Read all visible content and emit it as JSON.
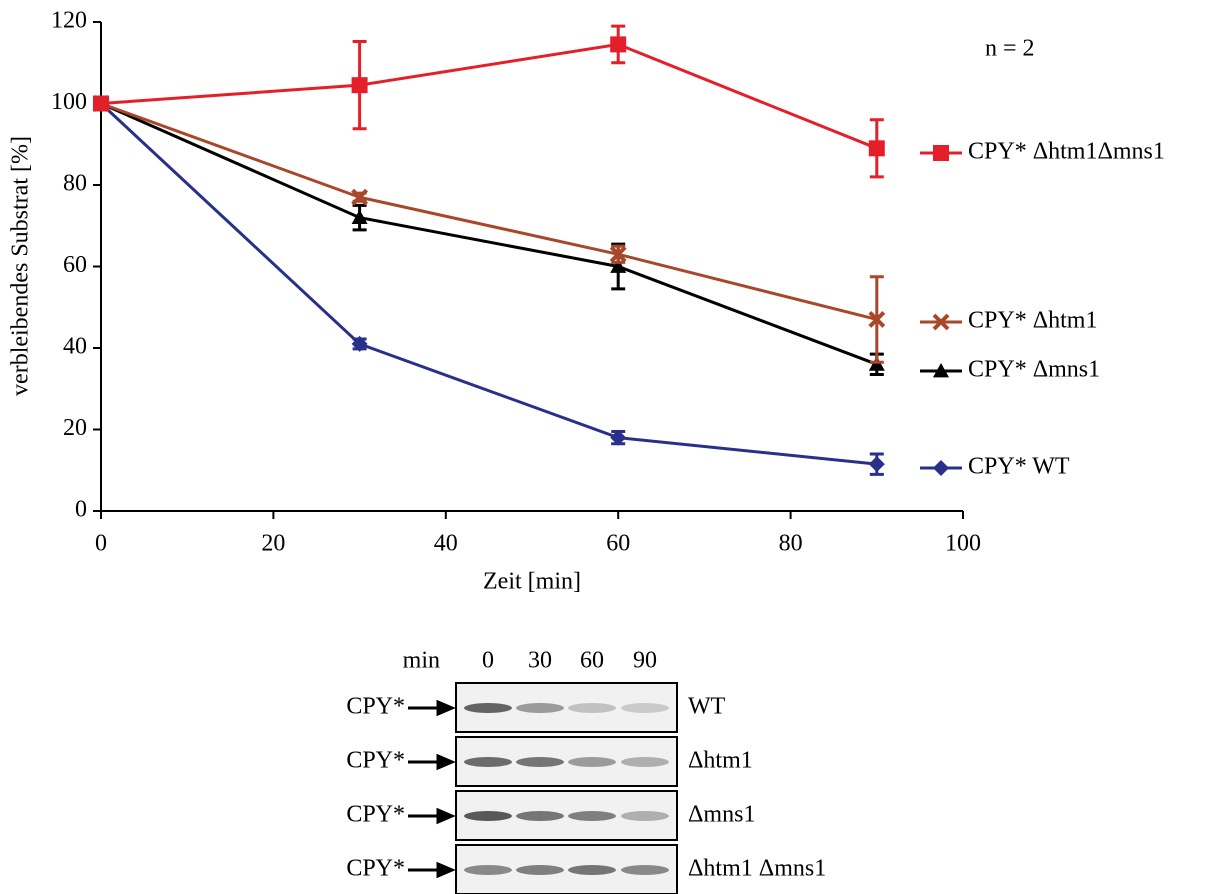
{
  "chart_data": {
    "type": "line",
    "annotation": "n = 2",
    "x_label": "Zeit [min]",
    "y_label": "verbleibendes Substrat [%]",
    "x": [
      0,
      30,
      60,
      90
    ],
    "series": [
      {
        "name": "CPY* Δhtm1Δmns1",
        "color": "#e3202a",
        "marker": "square",
        "values": [
          100,
          104.5,
          114.5,
          89
        ],
        "errors": [
          null,
          10.7,
          4.5,
          7
        ]
      },
      {
        "name": "CPY* Δhtm1",
        "color": "#a8472a",
        "marker": "x",
        "values": [
          100,
          77,
          63,
          47
        ],
        "errors": [
          null,
          1,
          2,
          10.5
        ]
      },
      {
        "name": "CPY* Δmns1",
        "color": "#000000",
        "marker": "triangle",
        "values": [
          100,
          72,
          60,
          36
        ],
        "errors": [
          null,
          3,
          5.5,
          2.5
        ]
      },
      {
        "name": "CPY* WT",
        "color": "#28308a",
        "marker": "diamond",
        "values": [
          100,
          41,
          18,
          11.5
        ],
        "errors": [
          null,
          1.2,
          1.5,
          2.5
        ]
      }
    ],
    "xlim": [
      0,
      100
    ],
    "xticks": [
      0,
      20,
      40,
      60,
      80,
      100
    ],
    "ylim": [
      0,
      120
    ],
    "yticks": [
      0,
      20,
      40,
      60,
      80,
      100,
      120
    ],
    "grid": false
  },
  "blot": {
    "header_label": "min",
    "lanes": [
      "0",
      "30",
      "60",
      "90"
    ],
    "rows": [
      {
        "label": "CPY*",
        "strain": "WT"
      },
      {
        "label": "CPY*",
        "strain": "Δhtm1"
      },
      {
        "label": "CPY*",
        "strain": "Δmns1"
      },
      {
        "label": "CPY*",
        "strain": "Δhtm1 Δmns1"
      }
    ]
  }
}
